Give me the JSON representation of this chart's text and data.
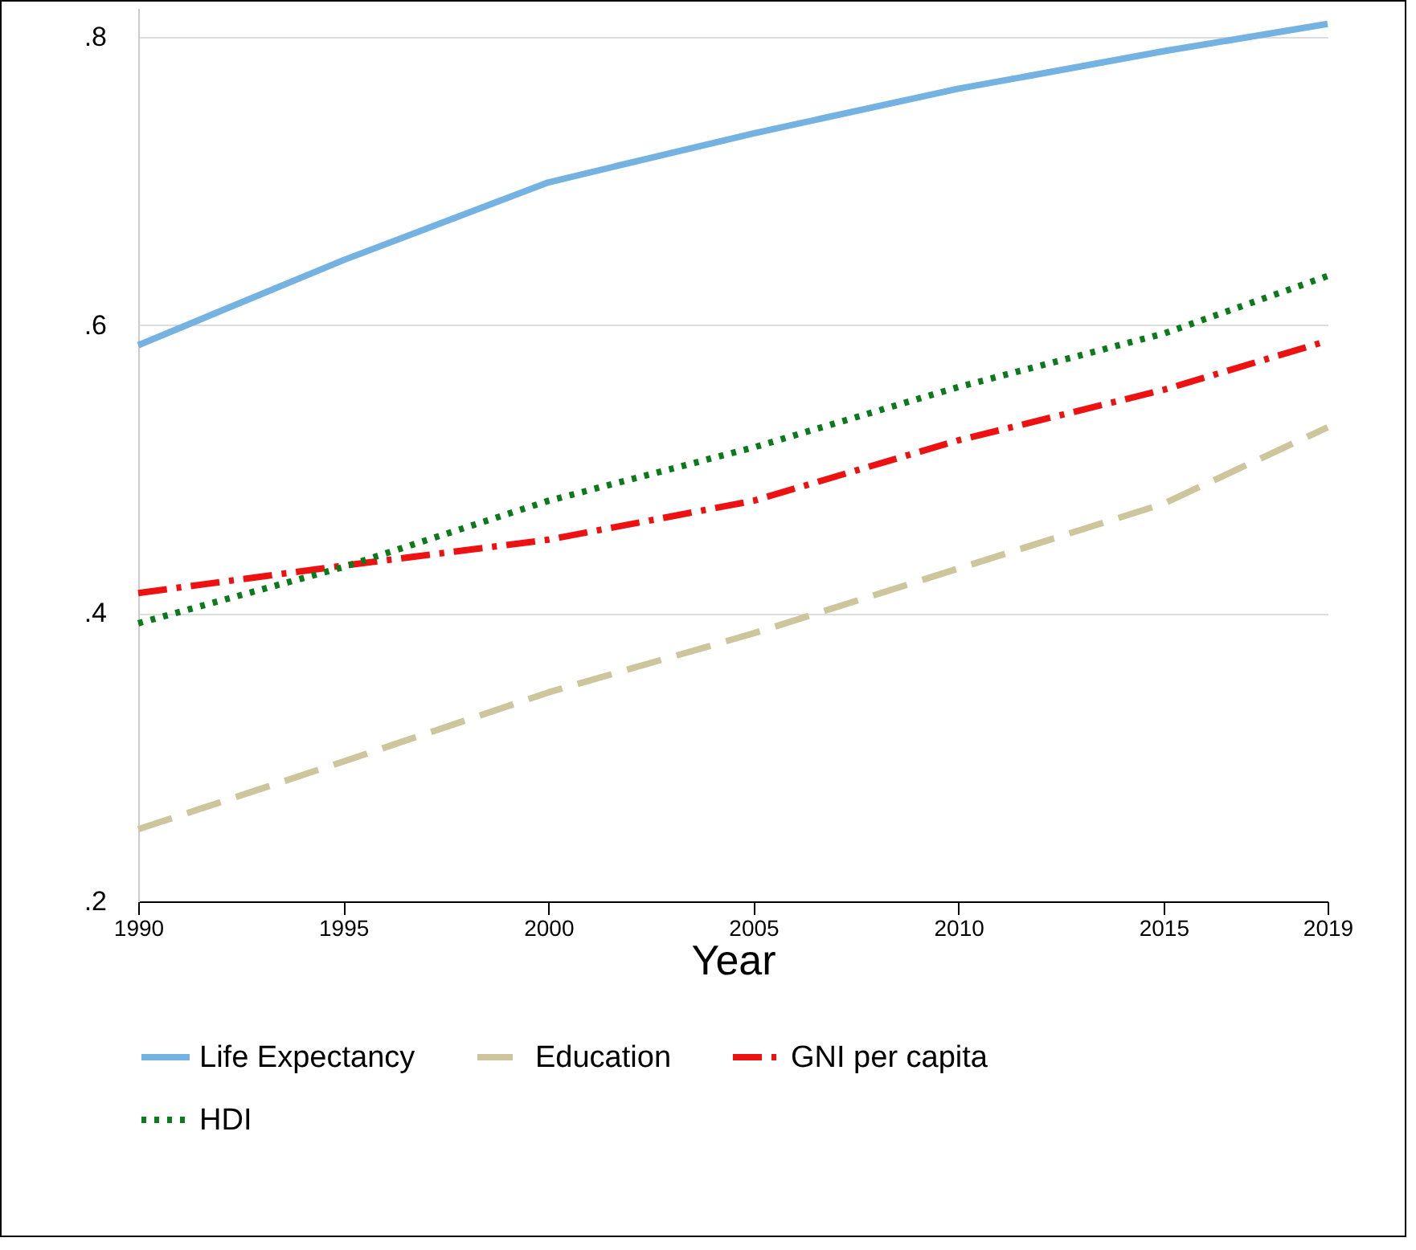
{
  "chart_data": {
    "type": "line",
    "xlabel": "Year",
    "x": [
      1990,
      1995,
      2000,
      2005,
      2010,
      2015,
      2019
    ],
    "xlim": [
      1990,
      2019
    ],
    "xticks": [
      1990,
      1995,
      2000,
      2005,
      2010,
      2015,
      2019
    ],
    "ylim": [
      0.2,
      0.82
    ],
    "yticks": [
      {
        "value": 0.2,
        "label": ".2"
      },
      {
        "value": 0.4,
        "label": ".4"
      },
      {
        "value": 0.6,
        "label": ".6"
      },
      {
        "value": 0.8,
        "label": ".8"
      }
    ],
    "grid": "y",
    "legend": "bottom",
    "series": [
      {
        "name": "Life Expectancy",
        "color": "#74b2e2",
        "line_style": "solid",
        "values": [
          0.586,
          0.645,
          0.699,
          0.733,
          0.764,
          0.79,
          0.809
        ]
      },
      {
        "name": "Education",
        "color": "#cdc59c",
        "line_style": "dashed",
        "values": [
          0.25,
          0.297,
          0.345,
          0.386,
          0.431,
          0.476,
          0.529
        ]
      },
      {
        "name": "GNI per capita",
        "color": "#ee1111",
        "line_style": "dashdot",
        "values": [
          0.414,
          0.433,
          0.451,
          0.478,
          0.52,
          0.555,
          0.589
        ]
      },
      {
        "name": "HDI",
        "color": "#0a7a1a",
        "line_style": "dotted",
        "values": [
          0.393,
          0.432,
          0.478,
          0.515,
          0.557,
          0.594,
          0.634
        ]
      }
    ]
  }
}
